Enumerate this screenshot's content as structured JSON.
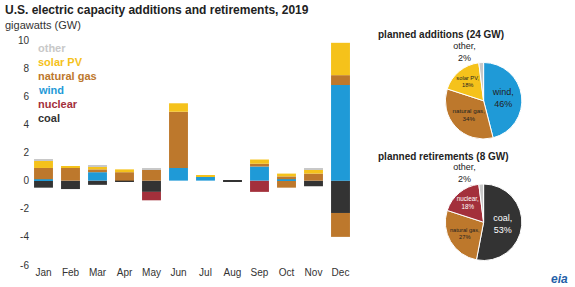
{
  "chart_data": [
    {
      "type": "bar",
      "title": "U.S. electric capacity additions and retirements, 2019",
      "subtitle": "gigawatts (GW)",
      "categories": [
        "Jan",
        "Feb",
        "Mar",
        "Apr",
        "May",
        "Jun",
        "Jul",
        "Aug",
        "Sep",
        "Oct",
        "Nov",
        "Dec"
      ],
      "series": [
        {
          "name": "other",
          "color": "#c8c8c8",
          "values": [
            0.1,
            0,
            0.1,
            0,
            0.1,
            0,
            0,
            0,
            0,
            0,
            0.1,
            0
          ]
        },
        {
          "name": "solar PV",
          "color": "#f5c21b",
          "values": [
            0.5,
            0.1,
            0.2,
            0.2,
            0,
            0.6,
            0.1,
            0,
            0.3,
            0.2,
            0.3,
            2.3
          ]
        },
        {
          "name": "natural gas",
          "color": "#bd782c",
          "values": [
            0.8,
            0.9,
            0.2,
            0.6,
            0.8,
            4.0,
            0,
            0,
            0.2,
            0.2,
            0.5,
            0.7
          ]
        },
        {
          "name": "wind",
          "color": "#1f9ad7",
          "values": [
            0.1,
            0,
            0.6,
            0,
            0,
            0.9,
            0.3,
            0,
            1.0,
            0.1,
            0,
            6.8
          ]
        },
        {
          "name": "nuclear",
          "color": "#a3303b",
          "values": [
            0,
            0,
            0,
            0,
            -0.6,
            0,
            0,
            0,
            -0.8,
            0,
            0,
            0
          ]
        },
        {
          "name": "natural gas",
          "color": "#bd782c",
          "values": [
            0,
            0,
            0,
            0,
            0,
            0,
            0,
            0,
            0,
            -0.5,
            0,
            -1.7
          ]
        },
        {
          "name": "coal",
          "color": "#333333",
          "values": [
            -0.5,
            -0.6,
            -0.3,
            -0.1,
            -0.8,
            0,
            0,
            -0.1,
            0,
            0,
            -0.4,
            -2.3
          ]
        }
      ],
      "ylim": [
        -6,
        10
      ],
      "yticks": [
        -6,
        -4,
        -2,
        0,
        2,
        4,
        6,
        8,
        10
      ],
      "stacked": true,
      "grid": false,
      "legend": "top left",
      "annotations": [
        "eia"
      ]
    },
    {
      "type": "pie",
      "title": "planned additions (24 GW)",
      "categories": [
        "wind",
        "natural gas",
        "solar PV",
        "other"
      ],
      "values": [
        46,
        34,
        18,
        2
      ],
      "value_labels": [
        "wind, 46%",
        "natural gas, 34%",
        "solar PV, 18%",
        "other, 2%"
      ],
      "colors": [
        "#1f9ad7",
        "#bd782c",
        "#f5c21b",
        "#c8c8c8"
      ],
      "data_labels": true
    },
    {
      "type": "pie",
      "title": "planned retirements (8 GW)",
      "categories": [
        "coal",
        "natural gas",
        "nuclear",
        "other"
      ],
      "values": [
        53,
        27,
        18,
        2
      ],
      "value_labels": [
        "coal, 53%",
        "natural gas, 27%",
        "nuclear, 18%",
        "other, 2%"
      ],
      "colors": [
        "#333333",
        "#bd782c",
        "#a3303b",
        "#c8c8c8"
      ],
      "data_labels": true
    }
  ]
}
